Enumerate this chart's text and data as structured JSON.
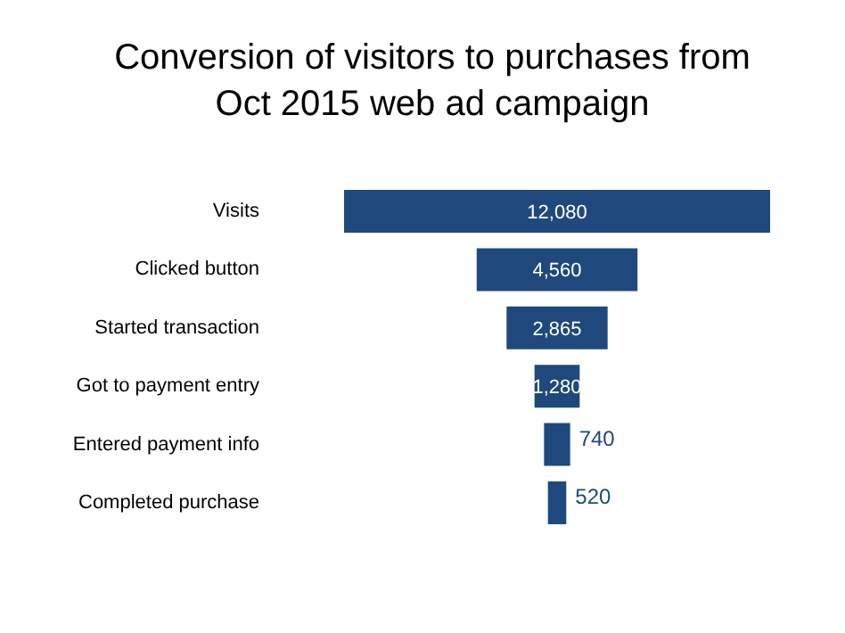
{
  "chart_data": {
    "type": "other",
    "title": "Conversion of visitors to purchases from\nOct 2015 web ad campaign",
    "categories": [
      "Visits",
      "Clicked button",
      "Started transaction",
      "Got to payment entry",
      "Entered payment info",
      "Completed purchase"
    ],
    "values": [
      12080,
      4560,
      2865,
      1280,
      740,
      520
    ],
    "color": "#1f497d",
    "value_labels": [
      "12,080",
      "4,560",
      "2,865",
      "1,280",
      "740",
      "520"
    ]
  }
}
